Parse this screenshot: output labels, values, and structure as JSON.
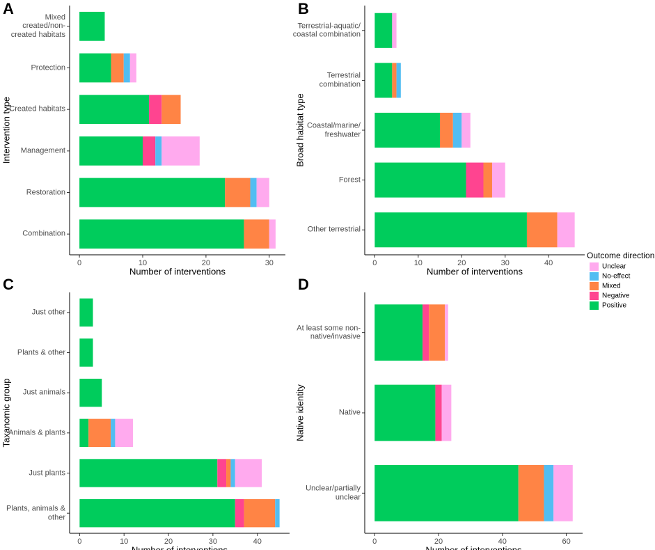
{
  "legend_title": "Outcome direction",
  "chart_data": [
    {
      "type": "barh",
      "panel": "A",
      "ylabel": "Intervention type",
      "xlabel": "Number of interventions",
      "categories": [
        "Mixed created/non-\ncreated habitats",
        "Protection",
        "Created habitats",
        "Management",
        "Restoration",
        "Combination"
      ],
      "series": [
        {
          "name": "Positive",
          "color": "#00cc5c",
          "values": [
            4,
            5,
            11,
            10,
            23,
            26
          ]
        },
        {
          "name": "Negative",
          "color": "#ff4490",
          "values": [
            0,
            0,
            2,
            2,
            0,
            0
          ]
        },
        {
          "name": "Mixed",
          "color": "#ff8445",
          "values": [
            0,
            2,
            3,
            0,
            4,
            4
          ]
        },
        {
          "name": "No-effect",
          "color": "#52bdf2",
          "values": [
            0,
            1,
            0,
            1,
            1,
            0
          ]
        },
        {
          "name": "Unclear",
          "color": "#ffaaee",
          "values": [
            0,
            1,
            0,
            6,
            2,
            1
          ]
        }
      ],
      "xlim": [
        -1.55,
        32.55
      ],
      "xticks": [
        0,
        10,
        20,
        30
      ]
    },
    {
      "type": "barh",
      "panel": "B",
      "ylabel": "Broad habitat type",
      "xlabel": "Number of interventions",
      "categories": [
        "Terrestrial-aquatic/\ncoastal combination",
        "Terrestrial\ncombination",
        "Coastal/marine/\nfreshwater",
        "Forest",
        "Other terrestrial"
      ],
      "series": [
        {
          "name": "Positive",
          "color": "#00cc5c",
          "values": [
            4,
            4,
            15,
            21,
            35
          ]
        },
        {
          "name": "Negative",
          "color": "#ff4490",
          "values": [
            0,
            0,
            0,
            4,
            0
          ]
        },
        {
          "name": "Mixed",
          "color": "#ff8445",
          "values": [
            0,
            1,
            3,
            2,
            7
          ]
        },
        {
          "name": "No-effect",
          "color": "#52bdf2",
          "values": [
            0,
            1,
            2,
            0,
            0
          ]
        },
        {
          "name": "Unclear",
          "color": "#ffaaee",
          "values": [
            1,
            0,
            2,
            3,
            4
          ]
        }
      ],
      "xlim": [
        -2.3,
        48.3
      ],
      "xticks": [
        0,
        10,
        20,
        30,
        40
      ]
    },
    {
      "type": "barh",
      "panel": "C",
      "ylabel": "Taxanomic group",
      "xlabel": "Number of interventions",
      "categories": [
        "Just other",
        "Plants & other",
        "Just animals",
        "Animals & plants",
        "Just plants",
        "Plants, animals &\nother"
      ],
      "series": [
        {
          "name": "Positive",
          "color": "#00cc5c",
          "values": [
            3,
            3,
            5,
            2,
            31,
            35
          ]
        },
        {
          "name": "Negative",
          "color": "#ff4490",
          "values": [
            0,
            0,
            0,
            0,
            2,
            2
          ]
        },
        {
          "name": "Mixed",
          "color": "#ff8445",
          "values": [
            0,
            0,
            0,
            5,
            1,
            7
          ]
        },
        {
          "name": "No-effect",
          "color": "#52bdf2",
          "values": [
            0,
            0,
            0,
            1,
            1,
            1
          ]
        },
        {
          "name": "Unclear",
          "color": "#ffaaee",
          "values": [
            0,
            0,
            0,
            4,
            6,
            0
          ]
        }
      ],
      "xlim": [
        -2.25,
        47.25
      ],
      "xticks": [
        0,
        10,
        20,
        30,
        40
      ]
    },
    {
      "type": "barh",
      "panel": "D",
      "ylabel": "Native identity",
      "xlabel": "Number of interventions",
      "categories": [
        "At least some non-\nnative/invasive",
        "Native",
        "Unclear/partially\nunclear"
      ],
      "series": [
        {
          "name": "Positive",
          "color": "#00cc5c",
          "values": [
            15,
            19,
            45
          ]
        },
        {
          "name": "Negative",
          "color": "#ff4490",
          "values": [
            2,
            2,
            0
          ]
        },
        {
          "name": "Mixed",
          "color": "#ff8445",
          "values": [
            5,
            0,
            8
          ]
        },
        {
          "name": "No-effect",
          "color": "#52bdf2",
          "values": [
            0,
            0,
            3
          ]
        },
        {
          "name": "Unclear",
          "color": "#ffaaee",
          "values": [
            1,
            3,
            6
          ]
        }
      ],
      "xlim": [
        -3.1,
        65.1
      ],
      "xticks": [
        0,
        20,
        40,
        60
      ]
    }
  ]
}
